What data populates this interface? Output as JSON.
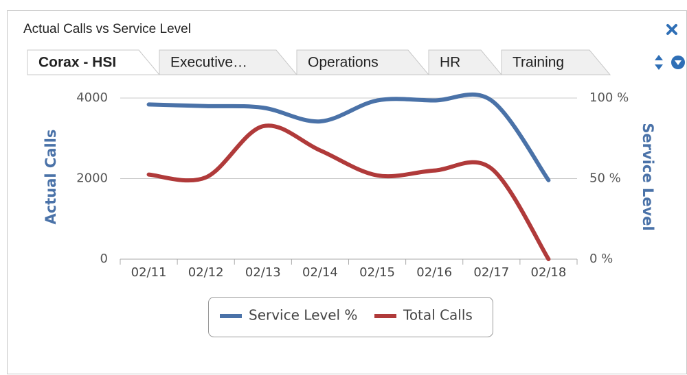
{
  "panel": {
    "title": "Actual Calls vs Service Level",
    "tabs": [
      "Corax - HSI",
      "Executive…",
      "Operations",
      "HR",
      "Training"
    ]
  },
  "chart_data": {
    "type": "line",
    "categories": [
      "02/11",
      "02/12",
      "02/13",
      "02/14",
      "02/15",
      "02/16",
      "02/17",
      "02/18"
    ],
    "series": [
      {
        "name": "Service Level %",
        "color": "#4a72a8",
        "axis": "y2",
        "values": [
          96,
          95,
          94,
          85.5,
          98.5,
          98.5,
          98.5,
          49
        ]
      },
      {
        "name": "Total Calls",
        "color": "#b03a3a",
        "values": [
          2100,
          2030,
          3300,
          2700,
          2080,
          2200,
          2250,
          0
        ]
      }
    ],
    "ylabel": "Actual Calls",
    "y2label": "Service Level",
    "ylim": [
      0,
      4000
    ],
    "yticks": [
      0,
      2000,
      4000
    ],
    "y2lim": [
      0,
      100
    ],
    "y2ticks": [
      {
        "value": 0,
        "label": "0 %"
      },
      {
        "value": 50,
        "label": "50 %"
      },
      {
        "value": 100,
        "label": "100 %"
      }
    ],
    "grid": true,
    "legend": "bottom"
  }
}
